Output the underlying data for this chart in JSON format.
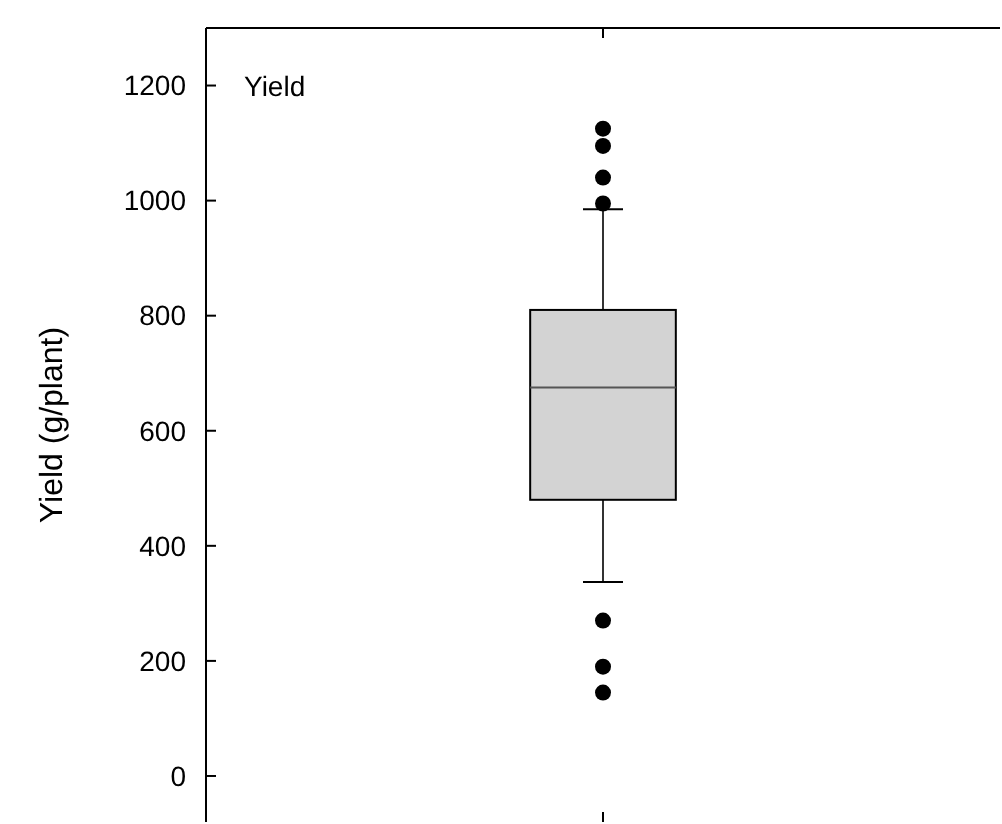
{
  "chart_data": {
    "type": "box",
    "ylabel": "Yield (g/plant)",
    "annotations": [
      "Yield"
    ],
    "categories": [
      null
    ],
    "ylim": [
      -80,
      1300
    ],
    "yticks": [
      0,
      200,
      400,
      600,
      800,
      1000,
      1200
    ],
    "boxes": [
      {
        "low": 337,
        "q1": 480,
        "median": 675,
        "q3": 810,
        "high": 985,
        "outliers": [
          995,
          1040,
          1095,
          1125,
          270,
          190,
          145
        ]
      }
    ],
    "color": "#d3d3d3",
    "grid": false
  }
}
